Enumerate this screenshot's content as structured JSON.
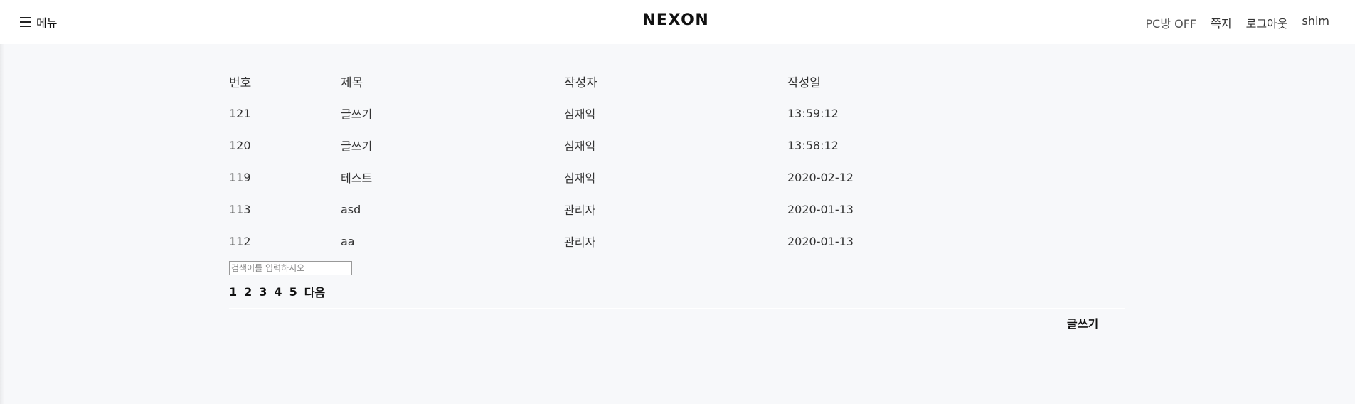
{
  "header": {
    "menu_label": "메뉴",
    "logo_text": "NEXON",
    "pc_room": "PC방 OFF",
    "messages": "쪽지",
    "logout": "로그아웃",
    "username": "shim"
  },
  "board": {
    "columns": [
      "번호",
      "제목",
      "작성자",
      "작성일"
    ],
    "rows": [
      {
        "no": "121",
        "title": "글쓰기",
        "author": "심재익",
        "date": "13:59:12"
      },
      {
        "no": "120",
        "title": "글쓰기",
        "author": "심재익",
        "date": "13:58:12"
      },
      {
        "no": "119",
        "title": "테스트",
        "author": "심재익",
        "date": "2020-02-12"
      },
      {
        "no": "113",
        "title": "asd",
        "author": "관리자",
        "date": "2020-01-13"
      },
      {
        "no": "112",
        "title": "aa",
        "author": "관리자",
        "date": "2020-01-13"
      }
    ],
    "search_placeholder": "검색어를 입력하시오",
    "pages": [
      "1",
      "2",
      "3",
      "4",
      "5"
    ],
    "next_label": "다음",
    "write_label": "글쓰기"
  }
}
